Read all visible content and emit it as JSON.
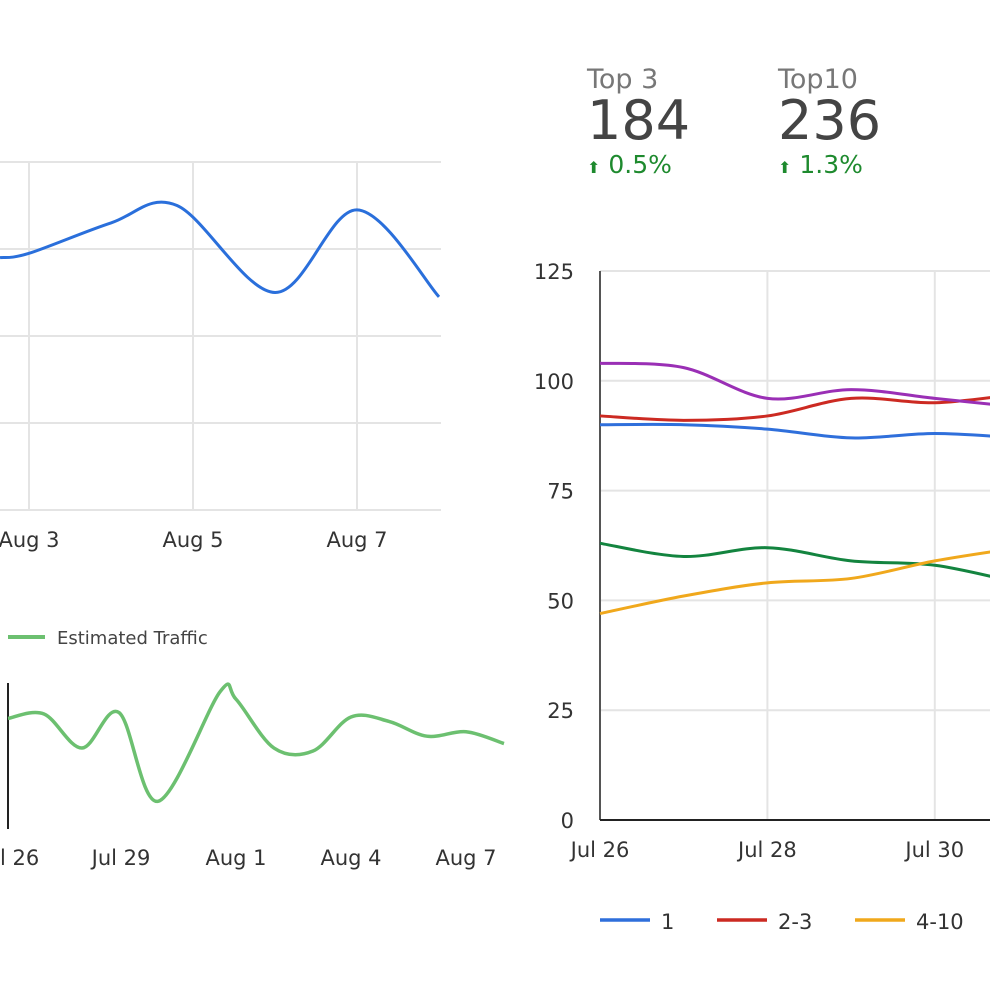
{
  "stats": [
    {
      "label": "Top 3",
      "value": "184",
      "change": "0.5%",
      "direction": "up",
      "icon": "arrow-up-icon"
    },
    {
      "label": "Top10",
      "value": "236",
      "change": "1.3%",
      "direction": "up",
      "icon": "arrow-up-icon"
    }
  ],
  "chart_data": [
    {
      "type": "line",
      "x_ticks": [
        "Aug 3",
        "Aug 5",
        "Aug 7"
      ],
      "x": [
        "Aug 2.65",
        "Aug 3",
        "Aug 4",
        "Aug 4.8",
        "Aug 6",
        "Aug 7",
        "Aug 8"
      ],
      "series": [
        {
          "color": "#2a6fdb",
          "values": [
            2.9,
            2.95,
            3.3,
            3.5,
            2.5,
            3.45,
            2.45
          ]
        }
      ],
      "ylim": [
        0,
        4
      ],
      "grid": true
    },
    {
      "type": "line",
      "legend": [
        "Estimated Traffic"
      ],
      "legend_placement": "top-left",
      "x_ticks": [
        "l 26",
        "Jul 29",
        "Aug 1",
        "Aug 4",
        "Aug 7"
      ],
      "x": [
        "Jul 26",
        "Jul 27",
        "Jul 28",
        "Jul 29",
        "Jul 30",
        "Jul 31.6",
        "Aug 1",
        "Aug 2",
        "Aug 3",
        "Aug 4",
        "Aug 5",
        "Aug 6",
        "Aug 7",
        "Aug 8"
      ],
      "series": [
        {
          "name": "Estimated Traffic",
          "color": "#6cc070",
          "values": [
            72,
            75,
            52,
            76,
            16,
            90,
            85,
            52,
            50,
            73,
            70,
            60,
            63,
            55
          ]
        }
      ],
      "ylim": [
        0,
        100
      ],
      "grid": false
    },
    {
      "type": "line",
      "y_ticks": [
        "0",
        "25",
        "50",
        "75",
        "100",
        "125"
      ],
      "ylim": [
        0,
        125
      ],
      "x_ticks": [
        "Jul 26",
        "Jul 28",
        "Jul 30"
      ],
      "x": [
        "Jul 26",
        "Jul 27",
        "Jul 28",
        "Jul 29",
        "Jul 30",
        "Jul 31"
      ],
      "legend_placement": "bottom",
      "grid": true,
      "series": [
        {
          "name": "1",
          "color": "#2f6fdb",
          "values": [
            90,
            90,
            89,
            87,
            88,
            87
          ]
        },
        {
          "name": "2-3",
          "color": "#cc2a22",
          "values": [
            92,
            91,
            92,
            96,
            95,
            97
          ]
        },
        {
          "name": "4-10",
          "color": "#f0a81c",
          "values": [
            47,
            51,
            54,
            55,
            59,
            62
          ]
        },
        {
          "color": "#9a2fb5",
          "values": [
            104,
            103,
            96,
            98,
            96,
            94
          ]
        },
        {
          "color": "#13843f",
          "values": [
            63,
            60,
            62,
            59,
            58,
            54
          ]
        }
      ]
    }
  ]
}
